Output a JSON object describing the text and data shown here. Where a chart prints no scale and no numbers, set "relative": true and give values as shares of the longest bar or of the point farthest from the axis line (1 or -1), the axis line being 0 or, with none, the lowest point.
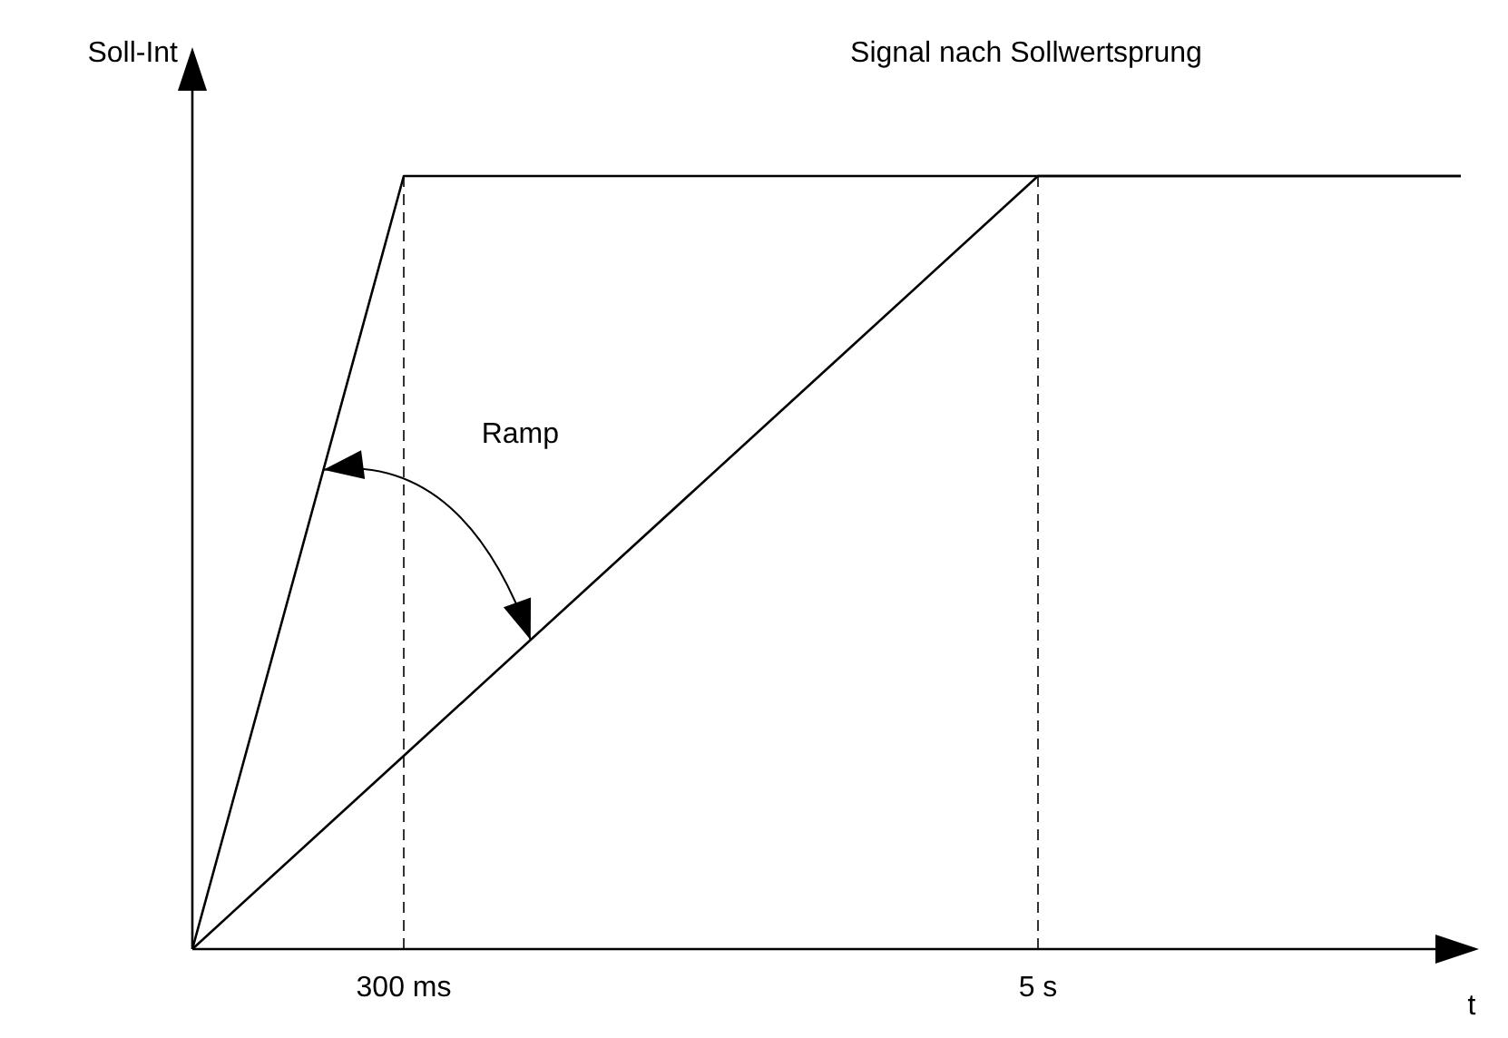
{
  "chart_data": {
    "type": "line",
    "title": "Signal nach Sollwertsprung",
    "xlabel": "t",
    "ylabel": "Soll-Int",
    "relative": true,
    "categories": [
      null,
      "300 ms",
      null,
      null,
      "5 s",
      null,
      null
    ],
    "series": [
      {
        "color": "#000000",
        "values": [
          0,
          1,
          1,
          1,
          1,
          1,
          1
        ]
      },
      {
        "color": "#000000",
        "values": [
          0,
          0.25,
          0.5,
          0.75,
          1,
          1,
          1
        ]
      }
    ],
    "ref_lines": [
      {
        "axis": "x",
        "value": "300 ms",
        "line_style": "dashed",
        "color": "#000000"
      },
      {
        "axis": "x",
        "value": "5 s",
        "line_style": "dashed",
        "color": "#000000"
      }
    ],
    "annotations": [
      "Ramp"
    ],
    "marker": "none",
    "line_style": "solid"
  }
}
